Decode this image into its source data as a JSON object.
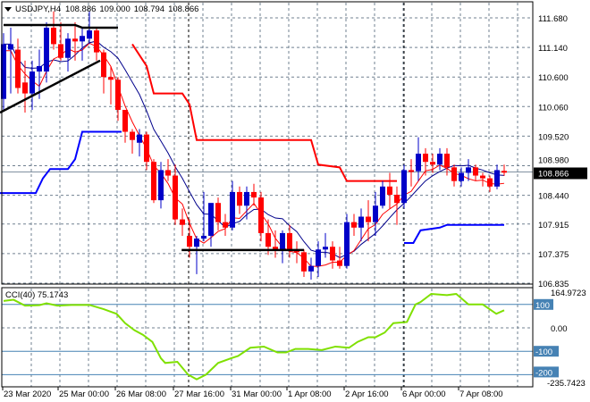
{
  "header": {
    "symbol": "USDJPY,H4",
    "open": "108.886",
    "high": "109.000",
    "low": "108.794",
    "close": "108.866"
  },
  "colors": {
    "bull": "#0000c8",
    "bear": "#ff0000",
    "cci": "#7fe000",
    "grid": "#708090",
    "level": "#4682b4",
    "upper_band": "#ff0000",
    "lower_band": "#0000ff"
  },
  "price_axis": [
    "111.680",
    "111.140",
    "110.600",
    "110.060",
    "109.520",
    "108.980",
    "108.440",
    "107.915",
    "107.375",
    "106.835"
  ],
  "current_price_label": "108.866",
  "cci": {
    "title": "CCI(40) 75.1743",
    "max_label": "164.9723",
    "min_label": "-235.7423",
    "levels": [
      "100",
      "0.00",
      "-100",
      "-200"
    ]
  },
  "time_axis": [
    "23 Mar 2020",
    "25 Mar 00:00",
    "26 Mar 08:00",
    "27 Mar 16:00",
    "31 Mar 00:00",
    "1 Apr 08:00",
    "2 Apr 16:00",
    "6 Apr 00:00",
    "7 Apr 08:00"
  ],
  "chart_data": {
    "type": "candlestick",
    "symbol": "USDJPY",
    "timeframe": "H4",
    "ylim": [
      106.835,
      111.68
    ],
    "ohlc": [
      [
        110.2,
        111.4,
        110.0,
        111.2
      ],
      [
        111.1,
        111.5,
        110.3,
        111.2
      ],
      [
        111.1,
        111.3,
        110.3,
        110.4
      ],
      [
        110.5,
        110.9,
        109.95,
        110.3
      ],
      [
        110.3,
        110.9,
        110.0,
        110.7
      ],
      [
        110.7,
        111.1,
        110.2,
        110.8
      ],
      [
        110.7,
        111.6,
        110.5,
        111.5
      ],
      [
        111.5,
        111.8,
        111.1,
        111.2
      ],
      [
        111.2,
        111.6,
        110.9,
        110.95
      ],
      [
        110.95,
        111.4,
        110.7,
        111.3
      ],
      [
        111.3,
        111.6,
        110.9,
        111.25
      ],
      [
        111.25,
        111.5,
        110.9,
        111.35
      ],
      [
        111.3,
        111.8,
        111.2,
        111.45
      ],
      [
        111.45,
        111.5,
        110.9,
        111.05
      ],
      [
        111.05,
        111.1,
        110.3,
        110.6
      ],
      [
        110.6,
        110.8,
        110.1,
        110.55
      ],
      [
        110.55,
        110.6,
        109.8,
        110.0
      ],
      [
        110.0,
        110.0,
        109.4,
        109.6
      ],
      [
        109.6,
        109.65,
        109.2,
        109.45
      ],
      [
        109.4,
        109.65,
        109.15,
        109.55
      ],
      [
        109.55,
        109.6,
        108.9,
        109.05
      ],
      [
        109.05,
        109.1,
        108.3,
        108.35
      ],
      [
        108.35,
        109.05,
        108.2,
        108.9
      ],
      [
        108.9,
        109.1,
        108.7,
        108.8
      ],
      [
        108.8,
        109.0,
        107.9,
        108.0
      ],
      [
        108.0,
        108.2,
        107.7,
        107.9
      ],
      [
        107.7,
        108.0,
        107.3,
        107.5
      ],
      [
        107.5,
        107.7,
        107.0,
        107.65
      ],
      [
        107.65,
        108.5,
        107.6,
        107.7
      ],
      [
        107.7,
        108.3,
        107.5,
        108.3
      ],
      [
        108.3,
        108.4,
        107.8,
        107.95
      ],
      [
        107.95,
        108.1,
        107.7,
        107.85
      ],
      [
        107.85,
        108.7,
        107.8,
        108.5
      ],
      [
        108.5,
        108.6,
        108.1,
        108.25
      ],
      [
        108.25,
        108.6,
        108.0,
        108.5
      ],
      [
        108.5,
        108.65,
        108.25,
        108.4
      ],
      [
        108.4,
        108.5,
        107.6,
        107.75
      ],
      [
        107.75,
        108.0,
        107.35,
        107.5
      ],
      [
        107.5,
        107.8,
        107.3,
        107.45
      ],
      [
        107.45,
        107.8,
        107.2,
        107.75
      ],
      [
        107.75,
        107.9,
        107.3,
        107.45
      ],
      [
        107.45,
        107.6,
        107.2,
        107.4
      ],
      [
        107.4,
        107.45,
        106.95,
        107.05
      ],
      [
        107.05,
        107.3,
        106.9,
        107.15
      ],
      [
        107.15,
        107.6,
        106.95,
        107.45
      ],
      [
        107.45,
        107.75,
        107.3,
        107.5
      ],
      [
        107.5,
        107.6,
        107.1,
        107.25
      ],
      [
        107.25,
        107.5,
        107.1,
        107.15
      ],
      [
        107.15,
        108.1,
        107.1,
        107.95
      ],
      [
        107.95,
        108.1,
        107.7,
        107.85
      ],
      [
        107.85,
        108.2,
        107.6,
        108.05
      ],
      [
        108.05,
        108.35,
        107.6,
        107.95
      ],
      [
        107.95,
        108.5,
        107.7,
        108.25
      ],
      [
        108.25,
        108.7,
        108.2,
        108.6
      ],
      [
        108.6,
        108.85,
        108.2,
        108.45
      ],
      [
        108.45,
        108.6,
        107.9,
        108.3
      ],
      [
        108.3,
        109.0,
        108.2,
        108.9
      ],
      [
        108.9,
        109.1,
        108.6,
        108.88
      ],
      [
        108.88,
        109.5,
        108.7,
        109.2
      ],
      [
        109.2,
        109.3,
        108.8,
        109.05
      ],
      [
        109.05,
        109.2,
        108.85,
        109.0
      ],
      [
        109.0,
        109.3,
        108.9,
        109.2
      ],
      [
        109.2,
        109.3,
        108.8,
        108.95
      ],
      [
        108.95,
        109.0,
        108.6,
        108.7
      ],
      [
        108.7,
        108.95,
        108.6,
        108.85
      ],
      [
        108.85,
        109.1,
        108.7,
        108.95
      ],
      [
        108.95,
        109.0,
        108.7,
        108.8
      ],
      [
        108.8,
        108.85,
        108.6,
        108.75
      ],
      [
        108.75,
        108.8,
        108.5,
        108.6
      ],
      [
        108.6,
        109.0,
        108.55,
        108.9
      ],
      [
        108.886,
        109.0,
        108.794,
        108.866
      ]
    ],
    "upper_band": [
      [
        18,
        111.2
      ],
      [
        20,
        110.8
      ],
      [
        21,
        110.3
      ],
      [
        25,
        110.3
      ],
      [
        26,
        110.1
      ],
      [
        27,
        109.45
      ],
      [
        43,
        109.45
      ],
      [
        44,
        109.0
      ],
      [
        47,
        108.95
      ],
      [
        48,
        108.7
      ],
      [
        55,
        108.7
      ]
    ],
    "lower_band_1": [
      [
        -0.5,
        108.48
      ],
      [
        4.5,
        108.48
      ],
      [
        5.5,
        108.75
      ],
      [
        6.5,
        108.92
      ],
      [
        9,
        108.92
      ],
      [
        10,
        109.1
      ],
      [
        11,
        109.6
      ],
      [
        16.5,
        109.6
      ]
    ],
    "lower_band_2": [
      [
        56,
        107.57
      ],
      [
        57.3,
        107.57
      ],
      [
        58.3,
        107.8
      ],
      [
        61,
        107.85
      ],
      [
        62,
        107.9
      ],
      [
        70,
        107.9
      ]
    ],
    "trendlines": [
      [
        [
          0,
          111.55
        ],
        [
          10,
          111.55
        ],
        [
          11,
          111.5
        ],
        [
          16,
          111.5
        ]
      ],
      [
        [
          -0.5,
          109.95
        ],
        [
          13.5,
          110.9
        ]
      ],
      [
        [
          24.9,
          107.44
        ],
        [
          42,
          107.44
        ]
      ]
    ],
    "cci_values": [
      [
        0,
        115
      ],
      [
        1.4,
        120
      ],
      [
        3,
        95
      ],
      [
        5,
        97
      ],
      [
        6,
        105
      ],
      [
        7.5,
        95
      ],
      [
        9.5,
        98
      ],
      [
        12,
        98
      ],
      [
        14,
        80
      ],
      [
        15.8,
        60
      ],
      [
        17,
        20
      ],
      [
        18.3,
        -10
      ],
      [
        19.5,
        -30
      ],
      [
        20.8,
        -60
      ],
      [
        22,
        -130
      ],
      [
        22.6,
        -150
      ],
      [
        24.3,
        -145
      ],
      [
        25.8,
        -200
      ],
      [
        27,
        -220
      ],
      [
        28.3,
        -200
      ],
      [
        30,
        -150
      ],
      [
        31.8,
        -130
      ],
      [
        32.8,
        -120
      ],
      [
        34.5,
        -85
      ],
      [
        36.4,
        -80
      ],
      [
        38.3,
        -105
      ],
      [
        39.5,
        -105
      ],
      [
        40.8,
        -90
      ],
      [
        42.6,
        -90
      ],
      [
        44.5,
        -95
      ],
      [
        46.4,
        -80
      ],
      [
        48.3,
        -85
      ],
      [
        49.5,
        -60
      ],
      [
        51,
        -40
      ],
      [
        52,
        -40
      ],
      [
        53.3,
        -20
      ],
      [
        54.5,
        20
      ],
      [
        56.4,
        25
      ],
      [
        57.6,
        100
      ],
      [
        58.3,
        110
      ],
      [
        59.8,
        145
      ],
      [
        62,
        140
      ],
      [
        63.3,
        145
      ],
      [
        65,
        100
      ],
      [
        67,
        100
      ],
      [
        68.9,
        60
      ],
      [
        70,
        75
      ]
    ],
    "cci_ylim": [
      -235.7423,
      164.9723
    ]
  }
}
